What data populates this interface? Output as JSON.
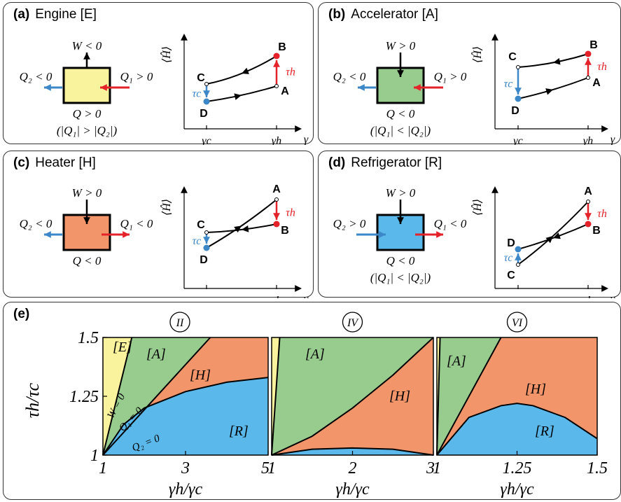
{
  "panels": [
    {
      "letter": "(a)",
      "name": "Engine [E]",
      "work": "W < 0",
      "q2": "Q₂ < 0",
      "q1": "Q₁ > 0",
      "q": "Q > 0",
      "cond": "(|Q₁| > |Q₂|)",
      "pts": {
        "A": "A",
        "B": "B",
        "C": "C",
        "D": "D"
      }
    },
    {
      "letter": "(b)",
      "name": "Accelerator [A]",
      "work": "W > 0",
      "q2": "Q₂ < 0",
      "q1": "Q₁ > 0",
      "q": "Q < 0",
      "cond": "(|Q₁| < |Q₂|)",
      "pts": {
        "A": "A",
        "B": "B",
        "C": "C",
        "D": "D"
      }
    },
    {
      "letter": "(c)",
      "name": "Heater [H]",
      "work": "W > 0",
      "q2": "Q₂ < 0",
      "q1": "Q₁ < 0",
      "q": "Q < 0",
      "cond": "",
      "pts": {
        "A": "A",
        "B": "B",
        "C": "C",
        "D": "D"
      }
    },
    {
      "letter": "(d)",
      "name": "Refrigerator [R]",
      "work": "W > 0",
      "q2": "Q₂ > 0",
      "q1": "Q₁ < 0",
      "q": "Q < 0",
      "cond": "(|Q₁| < |Q₂|)",
      "pts": {
        "A": "A",
        "B": "B",
        "C": "C",
        "D": "D"
      }
    }
  ],
  "cycle_axes": {
    "ylabel": "⟨Ĥ⟩",
    "xlabel": "γ",
    "tick_c": "γc",
    "tick_h": "γh",
    "tau_h": "τh",
    "tau_c": "τc"
  },
  "colors": {
    "engine": "#f8f39c",
    "accelerator": "#98cc8f",
    "heater": "#f2956a",
    "refrigerator": "#5ab8ea",
    "hot_arrow": "#e32229",
    "cold_arrow": "#3b87c8"
  },
  "panel_e": {
    "letter": "(e)",
    "ylabel": "τh/τc",
    "xlabel": "γh/γc",
    "regions": {
      "E": "[E]",
      "A": "[A]",
      "H": "[H]",
      "R": "[R]"
    },
    "curve_labels": {
      "w": "W = 0",
      "q1": "Q₁ = 0",
      "q2": "Q₂ = 0"
    },
    "ytick_labels": [
      "1",
      "1.25",
      "1.5"
    ],
    "subplots": [
      {
        "roman": "II",
        "xmin": 1,
        "xmax": 5,
        "xtick_labels": [
          "1",
          "3",
          "5"
        ]
      },
      {
        "roman": "IV",
        "xmin": 1,
        "xmax": 3,
        "xtick_labels": [
          "1",
          "2",
          "3"
        ]
      },
      {
        "roman": "VI",
        "xmin": 1,
        "xmax": 1.5,
        "xtick_labels": [
          "1",
          "1.25",
          "1.5"
        ]
      }
    ]
  },
  "chart_data": [
    {
      "type": "area",
      "roman": "II",
      "xlabel": "γh/γc",
      "ylabel": "τh/τc",
      "xlim": [
        1,
        5
      ],
      "ylim": [
        1,
        1.5
      ],
      "boundaries": {
        "W=0": {
          "x": [
            1,
            1.7
          ],
          "y": [
            1,
            1.5
          ]
        },
        "Q1=0": {
          "x": [
            1,
            3.6
          ],
          "y": [
            1,
            1.5
          ]
        },
        "Q2=0": {
          "x": [
            1,
            1.5,
            2,
            3,
            4,
            5
          ],
          "y": [
            1,
            1.13,
            1.2,
            1.27,
            1.31,
            1.33
          ]
        }
      },
      "regions": [
        "[E]",
        "[A]",
        "[H]",
        "[R]"
      ]
    },
    {
      "type": "area",
      "roman": "IV",
      "xlabel": "γh/γc",
      "ylabel": "τh/τc",
      "xlim": [
        1,
        3
      ],
      "ylim": [
        1,
        1.5
      ],
      "boundaries": {
        "W=0": {
          "x": [
            1,
            1.1
          ],
          "y": [
            1,
            1.5
          ]
        },
        "Q1=0": {
          "x": [
            1,
            1.5,
            2,
            2.5,
            3
          ],
          "y": [
            1,
            1.08,
            1.2,
            1.34,
            1.5
          ]
        },
        "Q2=0": {
          "x": [
            1,
            1.5,
            2,
            2.5,
            3
          ],
          "y": [
            1,
            1.025,
            1.03,
            1.025,
            1.0
          ]
        }
      },
      "regions": [
        "[A]",
        "[H]"
      ]
    },
    {
      "type": "area",
      "roman": "VI",
      "xlabel": "γh/γc",
      "ylabel": "τh/τc",
      "xlim": [
        1,
        1.5
      ],
      "ylim": [
        1,
        1.5
      ],
      "boundaries": {
        "W=0": {
          "x": [
            1,
            1.01
          ],
          "y": [
            1,
            1.5
          ]
        },
        "Q1=0": {
          "x": [
            1,
            1.2
          ],
          "y": [
            1,
            1.5
          ]
        },
        "Q2=0": {
          "x": [
            1,
            1.1,
            1.2,
            1.25,
            1.3,
            1.4,
            1.5
          ],
          "y": [
            1,
            1.16,
            1.21,
            1.22,
            1.21,
            1.16,
            1.07
          ]
        }
      },
      "regions": [
        "[A]",
        "[H]",
        "[R]"
      ]
    }
  ]
}
